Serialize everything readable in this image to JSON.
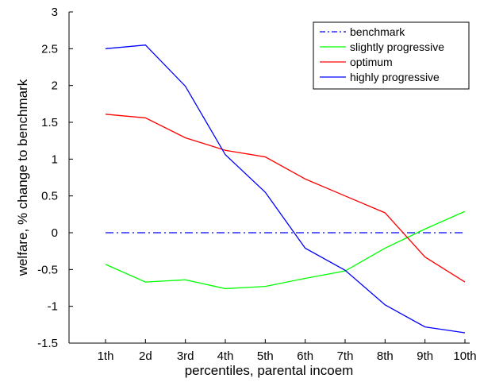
{
  "chart_data": {
    "type": "line",
    "title": "",
    "xlabel": "percentiles, parental incoem",
    "ylabel": "welfare, % change to benchmark",
    "categories": [
      "1th",
      "2d",
      "3rd",
      "4th",
      "5th",
      "6th",
      "7th",
      "8th",
      "9th",
      "10th"
    ],
    "ylim": [
      -1.5,
      3
    ],
    "yticks": [
      "-1.5",
      "-1",
      "-0.5",
      "0",
      "0.5",
      "1",
      "1.5",
      "2",
      "2.5",
      "3"
    ],
    "legend_position": "top-right",
    "grid": false,
    "series": [
      {
        "name": "benchmark",
        "color": "#0000ff",
        "dash": "dashdot",
        "values": [
          0,
          0,
          0,
          0,
          0,
          0,
          0,
          0,
          0,
          0
        ]
      },
      {
        "name": "slightly progressive",
        "color": "#00ff00",
        "dash": "solid",
        "values": [
          -0.43,
          -0.67,
          -0.64,
          -0.76,
          -0.73,
          -0.62,
          -0.52,
          -0.21,
          0.05,
          0.29
        ]
      },
      {
        "name": "optimum",
        "color": "#ff0000",
        "dash": "solid",
        "values": [
          1.61,
          1.56,
          1.29,
          1.12,
          1.03,
          0.73,
          0.5,
          0.27,
          -0.33,
          -0.67
        ]
      },
      {
        "name": "highly progressive",
        "color": "#0000ff",
        "dash": "solid",
        "values": [
          2.5,
          2.55,
          1.99,
          1.06,
          0.55,
          -0.21,
          -0.51,
          -0.98,
          -1.28,
          -1.36
        ]
      }
    ]
  }
}
